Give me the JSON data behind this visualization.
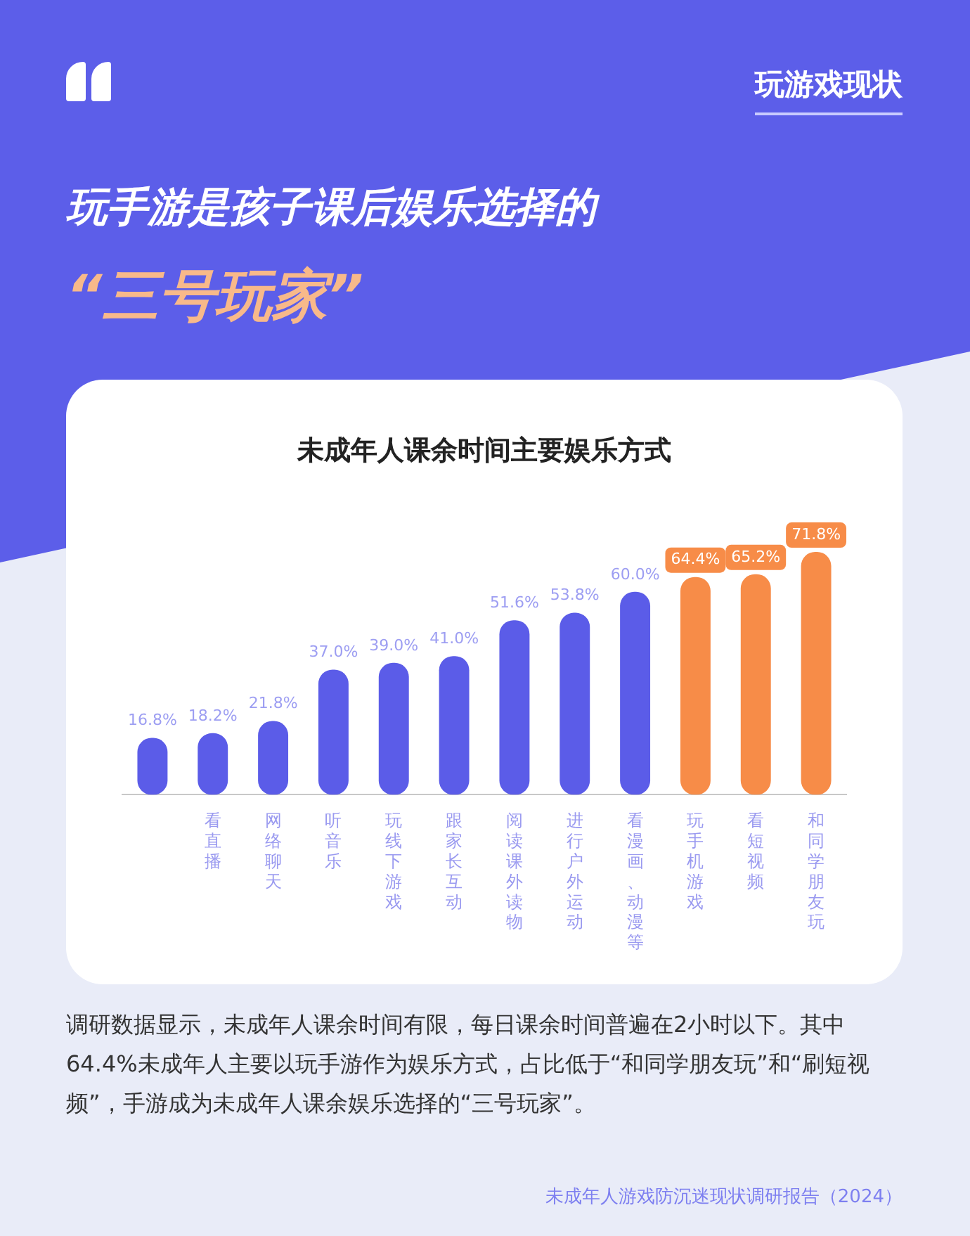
{
  "chart_data": {
    "type": "bar",
    "title": "未成年人课余时间主要娱乐方式",
    "categories": [
      null,
      "看直播",
      "网络聊天",
      "听音乐",
      "玩线下游戏",
      "跟家长互动",
      "阅读课外读物",
      "进行户外运动",
      "看漫画、动漫等",
      "玩手机游戏",
      "看短视频",
      "和同学朋友玩"
    ],
    "values": [
      16.8,
      18.2,
      21.8,
      37.0,
      39.0,
      41.0,
      51.6,
      53.8,
      60.0,
      64.4,
      65.2,
      71.8
    ],
    "colors": [
      "#5b5ce8",
      "#5b5ce8",
      "#5b5ce8",
      "#5b5ce8",
      "#5b5ce8",
      "#5b5ce8",
      "#5b5ce8",
      "#5b5ce8",
      "#5b5ce8",
      "#f78c48",
      "#f78c48",
      "#f78c48"
    ],
    "value_labels": [
      "16.8%",
      "18.2%",
      "21.8%",
      "37.0%",
      "39.0%",
      "41.0%",
      "51.6%",
      "53.8%",
      "60.0%",
      "64.4%",
      "65.2%",
      "71.8%"
    ],
    "grid": false,
    "legend": false,
    "annotations": [
      "玩游戏现状",
      "玩手游是孩子课后娱乐选择的",
      "“三号玩家”",
      "调研数据显示，未成年人课余时间有限，每日课余时间普遍在2小时以下。其中64.4%未成年人主要以玩手游作为娱乐方式，占比低于“和同学朋友玩”和“刷短视频”，手游成为未成年人课余娱乐选择的“三号玩家”。",
      "未成年人游戏防沉迷现状调研报告（2024）"
    ]
  }
}
